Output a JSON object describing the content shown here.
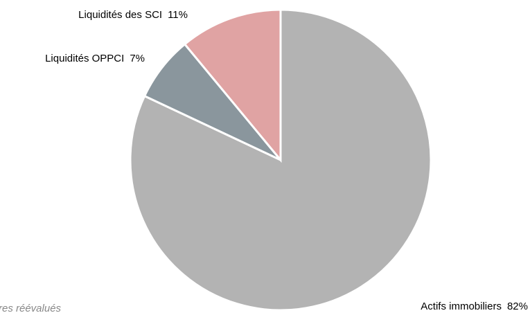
{
  "chart_data": {
    "type": "pie",
    "categories": [
      "Actifs immobiliers",
      "Liquidités OPPCI",
      "Liquidités des SCI"
    ],
    "values": [
      82,
      7,
      11
    ],
    "value_labels": [
      "82%",
      "7%",
      "11%"
    ],
    "colors": [
      "#b3b3b3",
      "#8a969d",
      "#e0a3a3"
    ],
    "annotation": "res réévalués"
  }
}
